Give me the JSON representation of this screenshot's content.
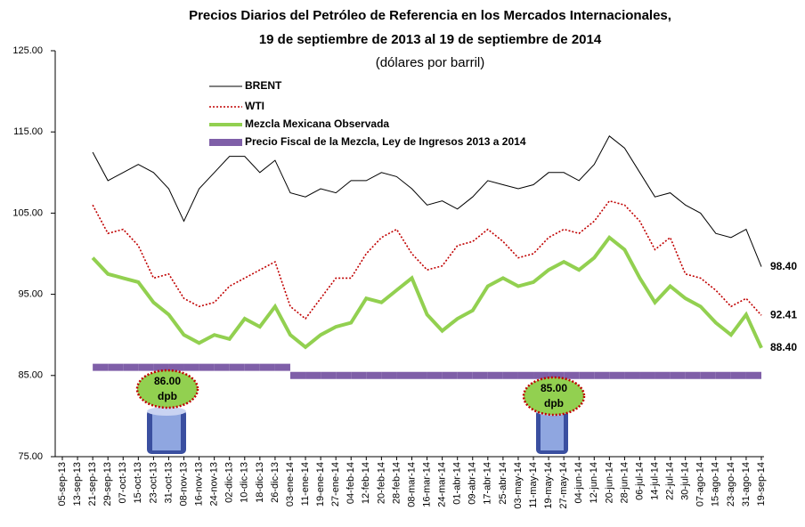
{
  "chart_data": {
    "type": "line",
    "title_lines": [
      "Precios Diarios del Petróleo de Referencia en los Mercados Internacionales,",
      "19 de septiembre de 2013 al 19 de septiembre de 2014"
    ],
    "subtitle": "(dólares por barril)",
    "categories": [
      "05-sep-13",
      "13-sep-13",
      "21-sep-13",
      "29-sep-13",
      "07-oct-13",
      "15-oct-13",
      "23-oct-13",
      "31-oct-13",
      "08-nov-13",
      "16-nov-13",
      "24-nov-13",
      "02-dic-13",
      "10-dic-13",
      "18-dic-13",
      "26-dic-13",
      "03-ene-14",
      "11-ene-14",
      "19-ene-14",
      "27-ene-14",
      "04-feb-14",
      "12-feb-14",
      "20-feb-14",
      "28-feb-14",
      "08-mar-14",
      "16-mar-14",
      "24-mar-14",
      "01-abr-14",
      "09-abr-14",
      "17-abr-14",
      "25-abr-14",
      "03-may-14",
      "11-may-14",
      "19-may-14",
      "27-may-14",
      "04-jun-14",
      "12-jun-14",
      "20-jun-14",
      "28-jun-14",
      "06-jul-14",
      "14-jul-14",
      "22-jul-14",
      "30-jul-14",
      "07-ago-14",
      "15-ago-14",
      "23-ago-14",
      "31-ago-14",
      "19-sep-14"
    ],
    "ylim": [
      75,
      125
    ],
    "yticks": [
      {
        "value": 75,
        "label": "75.00"
      },
      {
        "value": 85,
        "label": "85.00"
      },
      {
        "value": 95,
        "label": "95.00"
      },
      {
        "value": 105,
        "label": "105.00"
      },
      {
        "value": 115,
        "label": "115.00"
      },
      {
        "value": 125,
        "label": "125.00"
      }
    ],
    "series": [
      {
        "name": "BRENT",
        "color": "#000000",
        "style": "solid",
        "width": 1,
        "values": [
          null,
          null,
          112.5,
          109,
          110,
          111,
          110,
          108,
          104,
          108,
          110,
          112,
          112,
          110,
          111.5,
          107.5,
          107,
          108,
          107.5,
          109,
          109,
          110,
          109.5,
          108,
          106,
          106.5,
          105.5,
          107,
          109,
          108.5,
          108,
          108.5,
          110,
          110,
          109,
          111,
          114.5,
          113,
          110,
          107,
          107.5,
          106,
          105,
          102.5,
          102,
          103,
          98.4
        ],
        "value_labels": [
          null,
          null,
          null,
          null,
          null,
          null,
          null,
          null,
          null,
          null,
          null,
          null,
          null,
          null,
          null,
          null,
          null,
          null,
          null,
          null,
          null,
          null,
          null,
          null,
          null,
          null,
          null,
          null,
          null,
          null,
          null,
          null,
          null,
          null,
          null,
          null,
          null,
          null,
          null,
          null,
          null,
          null,
          null,
          null,
          null,
          null,
          "98.40"
        ]
      },
      {
        "name": "WTI",
        "color": "#c00000",
        "style": "dotted",
        "width": 1.6,
        "values": [
          null,
          null,
          106,
          102.5,
          103,
          101,
          97,
          97.5,
          94.5,
          93.5,
          94,
          96,
          97,
          98,
          99,
          93.5,
          92,
          94.5,
          97,
          97,
          100,
          102,
          103,
          100,
          98,
          98.5,
          101,
          101.5,
          103,
          101.5,
          99.5,
          100,
          102,
          103,
          102.5,
          104,
          106.5,
          106,
          104,
          100.5,
          102,
          97.5,
          97,
          95.5,
          93.5,
          94.5,
          92.41
        ],
        "value_labels": [
          null,
          null,
          null,
          null,
          null,
          null,
          null,
          null,
          null,
          null,
          null,
          null,
          null,
          null,
          null,
          null,
          null,
          null,
          null,
          null,
          null,
          null,
          null,
          null,
          null,
          null,
          null,
          null,
          null,
          null,
          null,
          null,
          null,
          null,
          null,
          null,
          null,
          null,
          null,
          null,
          null,
          null,
          null,
          null,
          null,
          null,
          "92.41"
        ]
      },
      {
        "name": "Mezcla Mexicana Observada",
        "color": "#92d050",
        "style": "solid",
        "width": 4,
        "values": [
          null,
          null,
          99.5,
          97.5,
          97,
          96.5,
          94,
          92.5,
          90,
          89,
          90,
          89.5,
          92,
          91,
          93.5,
          90,
          88.5,
          90,
          91,
          91.5,
          94.5,
          94,
          95.5,
          97,
          92.5,
          90.5,
          92,
          93,
          96,
          97,
          96,
          96.5,
          98,
          99,
          98,
          99.5,
          102,
          100.5,
          97,
          94,
          96,
          94.5,
          93.5,
          91.5,
          90,
          92.5,
          88.4
        ],
        "value_labels": [
          null,
          null,
          null,
          null,
          null,
          null,
          null,
          null,
          null,
          null,
          null,
          null,
          null,
          null,
          null,
          null,
          null,
          null,
          null,
          null,
          null,
          null,
          null,
          null,
          null,
          null,
          null,
          null,
          null,
          null,
          null,
          null,
          null,
          null,
          null,
          null,
          null,
          null,
          null,
          null,
          null,
          null,
          null,
          null,
          null,
          null,
          "88.40"
        ]
      },
      {
        "name": "Precio Fiscal de la Mezcla, Ley de Ingresos 2013 a 2014",
        "color": "#7f5fa8",
        "style": "step",
        "width": 8,
        "values": [
          null,
          null,
          86,
          86,
          86,
          86,
          86,
          86,
          86,
          86,
          86,
          86,
          86,
          86,
          86,
          85,
          85,
          85,
          85,
          85,
          85,
          85,
          85,
          85,
          85,
          85,
          85,
          85,
          85,
          85,
          85,
          85,
          85,
          85,
          85,
          85,
          85,
          85,
          85,
          85,
          85,
          85,
          85,
          85,
          85,
          85,
          85
        ]
      }
    ],
    "annotations": [
      {
        "value": "86.00",
        "unit": "dpb"
      },
      {
        "value": "85.00",
        "unit": "dpb"
      }
    ]
  }
}
